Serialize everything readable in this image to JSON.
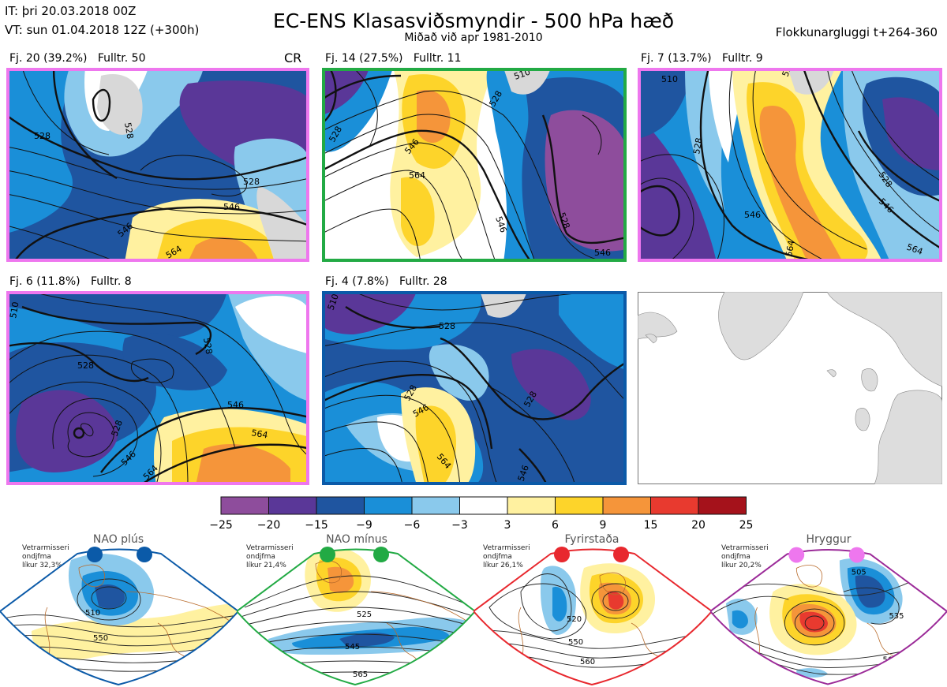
{
  "header": {
    "it_line": "IT: þri 20.03.2018 00Z",
    "vt_line": "VT: sun 01.04.2018 12Z  (+300h)",
    "title": "EC-ENS Klasasviðsmyndir - 500 hPa hæð",
    "subtitle": "Miðað við apr 1981-2010",
    "window": "Flokkunargluggi t+264-360"
  },
  "panels": [
    {
      "label": "Fj. 20 (39.2%)   Fulltr. 50",
      "border": "#ee77ee",
      "extra": "CR",
      "contours": [
        "528",
        "528",
        "528",
        "546",
        "546",
        "564"
      ]
    },
    {
      "label": "Fj. 14 (27.5%)   Fulltr. 11",
      "border": "#22aa44",
      "contours": [
        "510",
        "528",
        "528",
        "546",
        "564",
        "528",
        "546",
        "546"
      ]
    },
    {
      "label": "Fj. 7 (13.7%)   Fulltr. 9",
      "border": "#ee77ee",
      "contours": [
        "510",
        "528",
        "528",
        "528",
        "546",
        "546",
        "564",
        "564"
      ]
    },
    {
      "label": "Fj. 6 (11.8%)   Fulltr. 8",
      "border": "#ee77ee",
      "contours": [
        "510",
        "528",
        "528",
        "528",
        "546",
        "546",
        "564",
        "564"
      ]
    },
    {
      "label": "Fj. 4 (7.8%)   Fulltr. 28",
      "border": "#0b5aa8",
      "contours": [
        "510",
        "528",
        "528",
        "528",
        "546",
        "564",
        "546"
      ]
    }
  ],
  "colorbar": {
    "ticks": [
      "−25",
      "−20",
      "−15",
      "−9",
      "−6",
      "−3",
      "3",
      "6",
      "9",
      "15",
      "20",
      "25"
    ],
    "colors": [
      "#8e4d9c",
      "#5a3798",
      "#1f55a0",
      "#1a8fd8",
      "#8ac9ec",
      "#ffffff",
      "#fff1a0",
      "#fdd42a",
      "#f5953a",
      "#e83a2f",
      "#a5121b"
    ]
  },
  "regimes": [
    {
      "name": "NAO plús",
      "note": [
        "Vetrarmisseri",
        "ondjfma",
        "líkur 32,3%"
      ],
      "color": "#0b5aa8",
      "contours": [
        "510",
        "550"
      ]
    },
    {
      "name": "NAO mínus",
      "note": [
        "Vetrarmisseri",
        "ondjfma",
        "líkur 21,4%"
      ],
      "color": "#22aa44",
      "contours": [
        "525",
        "545",
        "565"
      ]
    },
    {
      "name": "Fyrirstaða",
      "note": [
        "Vetrarmisseri",
        "ondjfma",
        "líkur 26,1%"
      ],
      "color": "#e8282e",
      "contours": [
        "520",
        "550",
        "560"
      ]
    },
    {
      "name": "Hryggur",
      "note": [
        "Vetrarmisseri",
        "ondjfma",
        "líkur 20,2%"
      ],
      "color": "#9b2a98",
      "contours": [
        "505",
        "535",
        "560"
      ]
    }
  ]
}
